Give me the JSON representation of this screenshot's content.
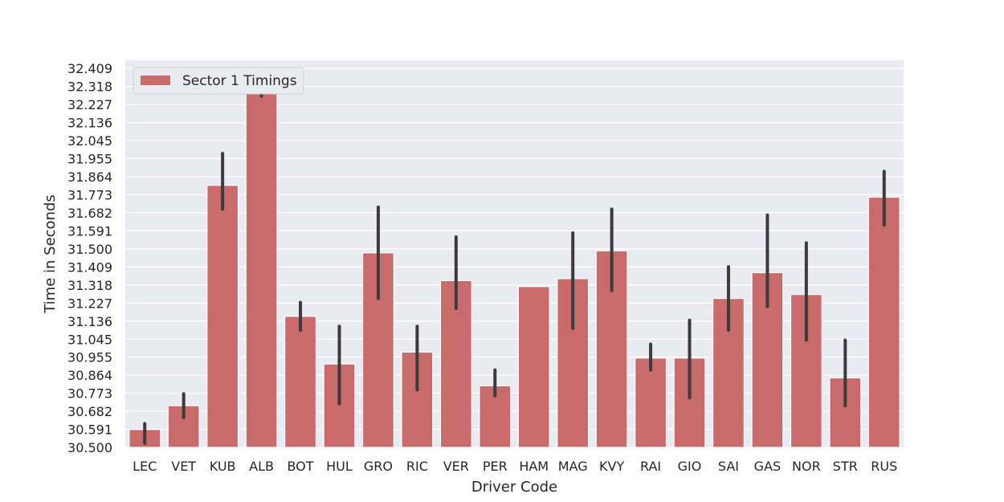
{
  "chart_data": {
    "type": "bar",
    "title": "",
    "xlabel": "Driver Code",
    "ylabel": "Time in Seconds",
    "legend": {
      "label": "Sector 1 Timings",
      "placement": "top-left"
    },
    "grid": true,
    "bar_color": "#c96b6b",
    "errorbar_color": "#3b3b3b",
    "background_color": "#eaeaf2",
    "ylim": [
      30.5,
      32.45
    ],
    "yticks": [
      "30.500",
      "30.591",
      "30.682",
      "30.773",
      "30.864",
      "30.955",
      "31.045",
      "31.136",
      "31.227",
      "31.318",
      "31.409",
      "31.500",
      "31.591",
      "31.682",
      "31.773",
      "31.864",
      "31.955",
      "32.045",
      "32.136",
      "32.227",
      "32.318",
      "32.409"
    ],
    "categories": [
      "LEC",
      "VET",
      "KUB",
      "ALB",
      "BOT",
      "HUL",
      "GRO",
      "RIC",
      "VER",
      "PER",
      "HAM",
      "MAG",
      "KVY",
      "RAI",
      "GIO",
      "SAI",
      "GAS",
      "NOR",
      "STR",
      "RUS"
    ],
    "series": [
      {
        "name": "Sector 1 Timings",
        "values": [
          30.59,
          30.71,
          31.82,
          32.32,
          31.16,
          30.92,
          31.48,
          30.98,
          31.34,
          30.81,
          31.31,
          31.35,
          31.49,
          30.95,
          30.95,
          31.25,
          31.38,
          31.27,
          30.85,
          31.76
        ],
        "ci_low": [
          30.52,
          30.65,
          31.7,
          32.27,
          31.09,
          30.72,
          31.25,
          30.79,
          31.2,
          30.76,
          31.31,
          31.1,
          31.29,
          30.89,
          30.75,
          31.09,
          31.21,
          31.04,
          30.71,
          31.62
        ],
        "ci_high": [
          30.62,
          30.77,
          31.98,
          32.36,
          31.23,
          31.11,
          31.71,
          31.11,
          31.56,
          30.89,
          31.31,
          31.58,
          31.7,
          31.02,
          31.14,
          31.41,
          31.67,
          31.53,
          31.04,
          31.89
        ]
      }
    ]
  }
}
